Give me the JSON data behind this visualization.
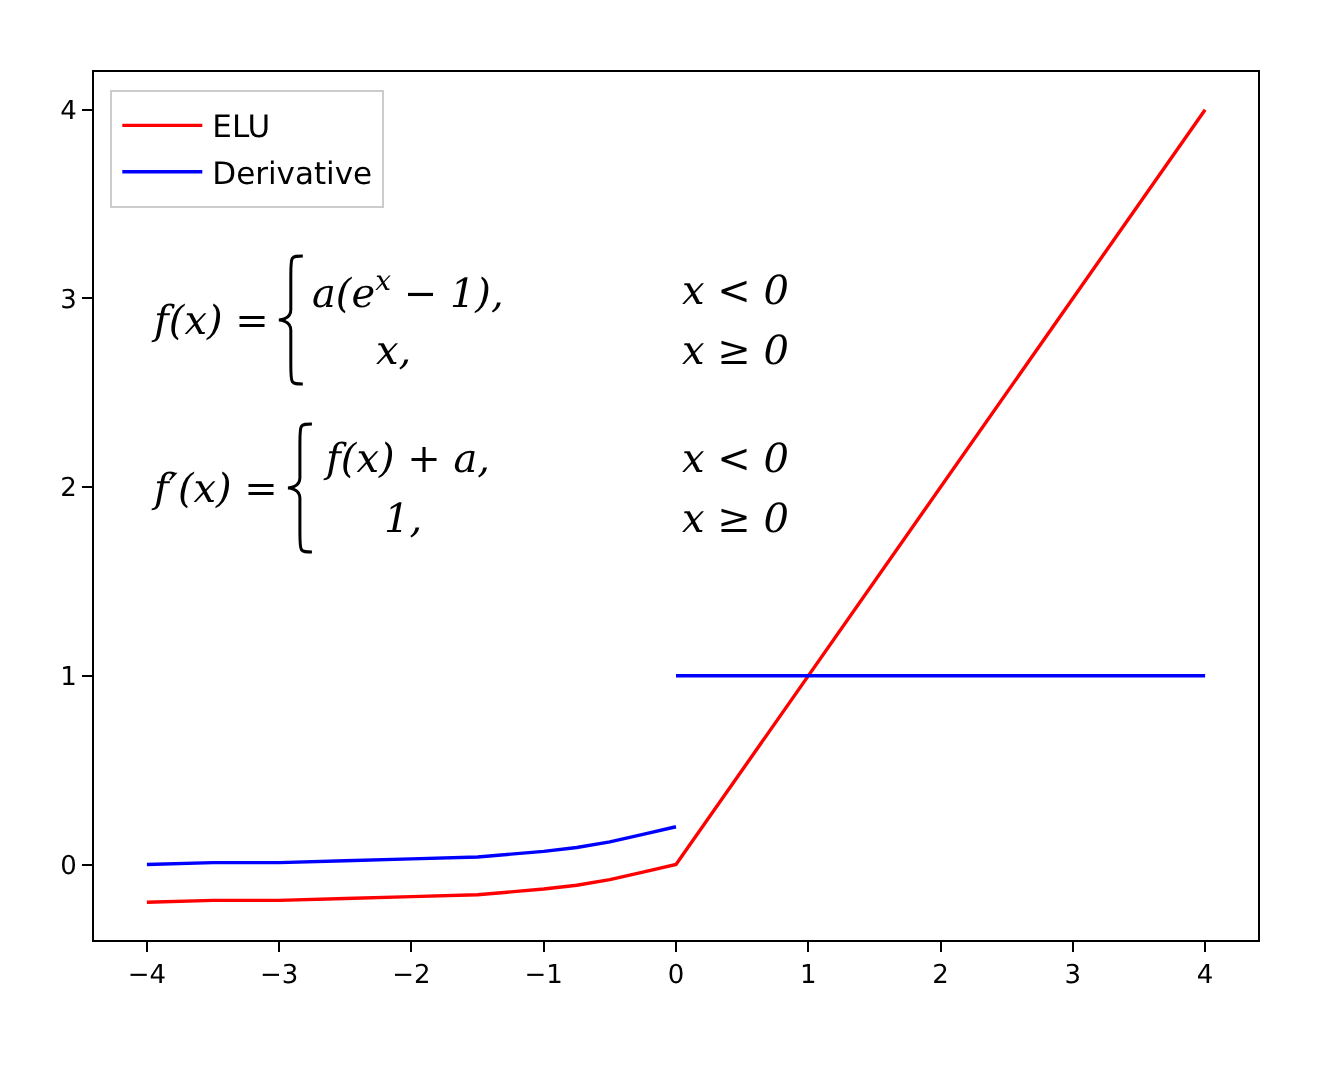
{
  "chart_data": {
    "type": "line",
    "series": [
      {
        "name": "ELU",
        "color": "#ff0000",
        "x": [
          -4,
          -3.5,
          -3,
          -2.5,
          -2,
          -1.5,
          -1,
          -0.75,
          -0.5,
          -0.25,
          0,
          4
        ],
        "values": [
          -0.2,
          -0.19,
          -0.19,
          -0.18,
          -0.17,
          -0.16,
          -0.13,
          -0.11,
          -0.08,
          -0.04,
          0,
          4
        ]
      },
      {
        "name": "Derivative",
        "color": "#0000ff",
        "x": [
          -4,
          -3.5,
          -3,
          -2.5,
          -2,
          -1.5,
          -1,
          -0.75,
          -0.5,
          -0.25,
          0
        ],
        "values": [
          0,
          0.01,
          0.01,
          0.02,
          0.03,
          0.04,
          0.07,
          0.09,
          0.12,
          0.16,
          0.2
        ]
      },
      {
        "color": "#0000ff",
        "x": [
          0,
          4
        ],
        "values": [
          1,
          1
        ]
      }
    ],
    "xlim": [
      -4.4,
      4.4
    ],
    "xticks": [
      -4,
      -3,
      -2,
      -1,
      0,
      1,
      2,
      3,
      4
    ],
    "ylim": [
      -0.4,
      4.2
    ],
    "yticks": [
      0,
      1,
      2,
      3,
      4
    ],
    "legend": "top left",
    "annotations": [
      "f(x) =",
      "a(e$^{x}$ − 1),",
      "x < 0",
      "x,",
      "x ≥ 0",
      "f′(x) =",
      "f(x) + a,",
      "x < 0",
      "1,",
      "x ≥ 0"
    ]
  }
}
